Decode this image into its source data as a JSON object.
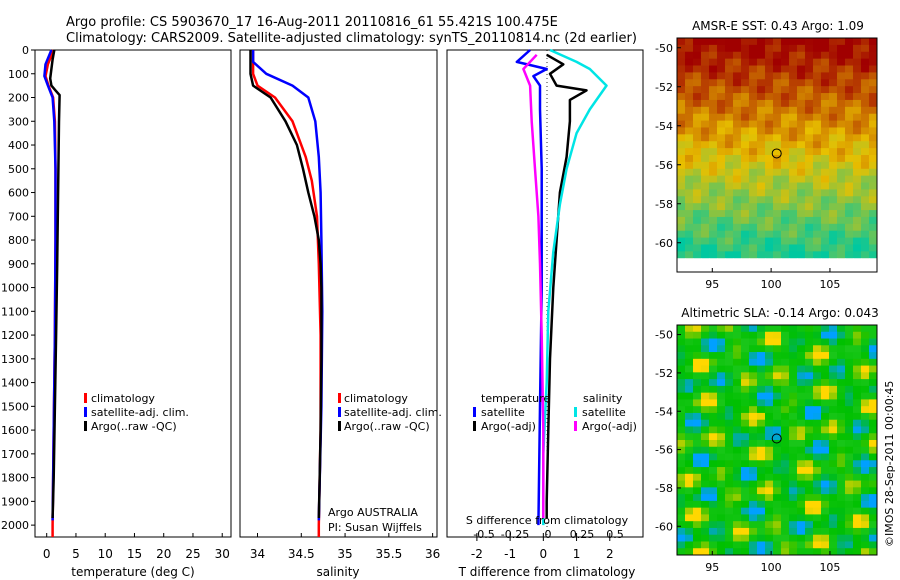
{
  "header": {
    "line1": "Argo profile: CS 5903670_17 16-Aug-2011 20110816_61 55.421S 100.475E",
    "line2": "Climatology: CARS2009. Satellite-adjusted climatology: synTS_20110814.nc (2d earlier)"
  },
  "depth_ticks": [
    0,
    100,
    200,
    300,
    400,
    500,
    600,
    700,
    800,
    900,
    1000,
    1100,
    1200,
    1300,
    1400,
    1500,
    1600,
    1700,
    1800,
    1900,
    2000
  ],
  "chart_data": [
    {
      "id": "temperature",
      "type": "line",
      "xlabel": "temperature (deg C)",
      "xticks": [
        0,
        5,
        10,
        15,
        20,
        25,
        30
      ],
      "xlim": [
        -2,
        31.5
      ],
      "ylim": [
        2050,
        0
      ],
      "legend": [
        "climatology",
        "satellite-adj. clim.",
        "Argo(..raw -QC)"
      ],
      "series": [
        {
          "name": "climatology",
          "color": "#ff0000",
          "points": [
            [
              1.2,
              0
            ],
            [
              0.2,
              60
            ],
            [
              -0.2,
              110
            ],
            [
              0.3,
              150
            ],
            [
              1.1,
              200
            ],
            [
              1.4,
              300
            ],
            [
              1.5,
              500
            ],
            [
              1.5,
              800
            ],
            [
              1.4,
              1200
            ],
            [
              1.2,
              1600
            ],
            [
              1.0,
              2000
            ],
            [
              1.0,
              2050
            ]
          ]
        },
        {
          "name": "satellite-adj. clim.",
          "color": "#0000ff",
          "points": [
            [
              0.8,
              0
            ],
            [
              -0.2,
              60
            ],
            [
              -0.4,
              110
            ],
            [
              0.2,
              150
            ],
            [
              1.0,
              200
            ],
            [
              1.3,
              300
            ],
            [
              1.5,
              500
            ],
            [
              1.5,
              800
            ],
            [
              1.4,
              1200
            ],
            [
              1.2,
              1600
            ],
            [
              1.0,
              1980
            ]
          ]
        },
        {
          "name": "Argo(..raw -QC)",
          "color": "#000000",
          "points": [
            [
              1.3,
              0
            ],
            [
              1.0,
              40
            ],
            [
              0.8,
              80
            ],
            [
              0.6,
              120
            ],
            [
              0.8,
              150
            ],
            [
              1.5,
              170
            ],
            [
              2.2,
              190
            ],
            [
              2.1,
              300
            ],
            [
              2.0,
              500
            ],
            [
              1.9,
              700
            ],
            [
              1.8,
              900
            ],
            [
              1.6,
              1200
            ],
            [
              1.4,
              1500
            ],
            [
              1.2,
              1800
            ],
            [
              1.0,
              1970
            ]
          ]
        }
      ]
    },
    {
      "id": "salinity",
      "type": "line",
      "xlabel": "salinity",
      "xticks": [
        34,
        34.5,
        35,
        35.5,
        36
      ],
      "xlim": [
        33.8,
        36.05
      ],
      "ylim": [
        2050,
        0
      ],
      "legend": [
        "climatology",
        "satellite-adj. clim.",
        "Argo(..raw -QC)"
      ],
      "annotation": [
        "Argo AUSTRALIA",
        "PI: Susan Wijffels"
      ],
      "series": [
        {
          "name": "climatology",
          "color": "#ff0000",
          "points": [
            [
              33.95,
              0
            ],
            [
              33.95,
              100
            ],
            [
              34.0,
              150
            ],
            [
              34.2,
              200
            ],
            [
              34.4,
              300
            ],
            [
              34.55,
              450
            ],
            [
              34.62,
              550
            ],
            [
              34.68,
              700
            ],
            [
              34.7,
              900
            ],
            [
              34.72,
              1200
            ],
            [
              34.72,
              1600
            ],
            [
              34.7,
              2000
            ],
            [
              34.7,
              2050
            ]
          ]
        },
        {
          "name": "satellite-adj. clim.",
          "color": "#0000ff",
          "points": [
            [
              33.95,
              0
            ],
            [
              33.95,
              50
            ],
            [
              34.1,
              100
            ],
            [
              34.4,
              150
            ],
            [
              34.58,
              200
            ],
            [
              34.66,
              300
            ],
            [
              34.7,
              450
            ],
            [
              34.72,
              600
            ],
            [
              34.73,
              800
            ],
            [
              34.74,
              1100
            ],
            [
              34.73,
              1500
            ],
            [
              34.7,
              1980
            ]
          ]
        },
        {
          "name": "Argo(..raw -QC)",
          "color": "#000000",
          "points": [
            [
              33.92,
              0
            ],
            [
              33.92,
              100
            ],
            [
              33.95,
              150
            ],
            [
              34.15,
              200
            ],
            [
              34.32,
              300
            ],
            [
              34.45,
              400
            ],
            [
              34.52,
              500
            ],
            [
              34.58,
              600
            ],
            [
              34.65,
              700
            ],
            [
              34.7,
              800
            ],
            [
              34.72,
              900
            ],
            [
              34.73,
              1000
            ],
            [
              34.73,
              1300
            ],
            [
              34.72,
              1600
            ],
            [
              34.71,
              1800
            ],
            [
              34.7,
              1970
            ]
          ]
        }
      ]
    },
    {
      "id": "difference",
      "type": "line",
      "xlabel": "T difference from climatology",
      "xticks": [
        -2,
        -1,
        0,
        1,
        2
      ],
      "top_label": "S difference from climatology",
      "top_ticks": [
        "-0.5",
        "-0.25",
        "0",
        "0.25",
        "0.5"
      ],
      "xlim": [
        -2.9,
        3.0
      ],
      "ylim": [
        2050,
        0
      ],
      "legend_headings": [
        "temperature",
        "salinity"
      ],
      "legend": [
        "satellite",
        "Argo(-adj)",
        "satellite",
        "Argo(-adj)"
      ],
      "series": [
        {
          "name": "T satellite",
          "color": "#0000ff",
          "points": [
            [
              -0.4,
              0
            ],
            [
              -0.8,
              50
            ],
            [
              0.1,
              80
            ],
            [
              -0.3,
              110
            ],
            [
              -0.1,
              150
            ],
            [
              -0.1,
              250
            ],
            [
              -0.05,
              500
            ],
            [
              -0.05,
              1000
            ],
            [
              -0.1,
              1500
            ],
            [
              -0.15,
              2000
            ]
          ]
        },
        {
          "name": "T Argo(-adj)",
          "color": "#000000",
          "points": [
            [
              0.1,
              20
            ],
            [
              0.6,
              60
            ],
            [
              0.2,
              100
            ],
            [
              0.4,
              150
            ],
            [
              1.3,
              170
            ],
            [
              0.8,
              210
            ],
            [
              0.8,
              300
            ],
            [
              0.7,
              450
            ],
            [
              0.5,
              600
            ],
            [
              0.4,
              800
            ],
            [
              0.3,
              1000
            ],
            [
              0.2,
              1300
            ],
            [
              0.15,
              1600
            ],
            [
              0.1,
              1900
            ],
            [
              0.1,
              1970
            ]
          ]
        },
        {
          "name": "S satellite",
          "color": "#00e5e5",
          "points": [
            [
              0.2,
              0
            ],
            [
              1.0,
              50
            ],
            [
              1.4,
              80
            ],
            [
              1.9,
              150
            ],
            [
              1.4,
              250
            ],
            [
              1.0,
              350
            ],
            [
              0.7,
              500
            ],
            [
              0.5,
              650
            ],
            [
              0.3,
              850
            ],
            [
              0.15,
              1100
            ],
            [
              0.1,
              1400
            ],
            [
              0.0,
              1700
            ],
            [
              0.0,
              2000
            ]
          ]
        },
        {
          "name": "S Argo(-adj)",
          "color": "#ff00ff",
          "points": [
            [
              -0.2,
              20
            ],
            [
              -0.6,
              80
            ],
            [
              -0.4,
              150
            ],
            [
              -0.35,
              300
            ],
            [
              -0.25,
              500
            ],
            [
              -0.15,
              700
            ],
            [
              -0.1,
              900
            ],
            [
              -0.05,
              1200
            ],
            [
              0.0,
              1600
            ],
            [
              0.0,
              1970
            ]
          ]
        }
      ]
    },
    {
      "id": "sst-map",
      "type": "heatmap",
      "title": "AMSR-E SST: 0.43 Argo: 1.09",
      "xticks": [
        95,
        100,
        105
      ],
      "yticks": [
        -50,
        -52,
        -54,
        -56,
        -58,
        -60
      ],
      "xlim": [
        92,
        109
      ],
      "ylim": [
        -61.5,
        -49.5
      ],
      "marker": {
        "lon": 100.475,
        "lat": -55.421
      }
    },
    {
      "id": "sla-map",
      "type": "heatmap",
      "title": "Altimetric SLA: -0.14 Argo: 0.043",
      "xticks": [
        95,
        100,
        105
      ],
      "yticks": [
        -50,
        -52,
        -54,
        -56,
        -58,
        -60
      ],
      "xlim": [
        92,
        109
      ],
      "ylim": [
        -61.5,
        -49.5
      ],
      "marker": {
        "lon": 100.475,
        "lat": -55.421
      }
    }
  ],
  "colors": {
    "sst_high": "#a00000",
    "sst_mid": "#e8c000",
    "sst_low": "#00c8a0",
    "sla_mid": "#00c000",
    "sla_high": "#ffd700",
    "sla_low": "#00a0ff"
  },
  "credit": "©IMOS 28-Sep-2011 00:00:45"
}
